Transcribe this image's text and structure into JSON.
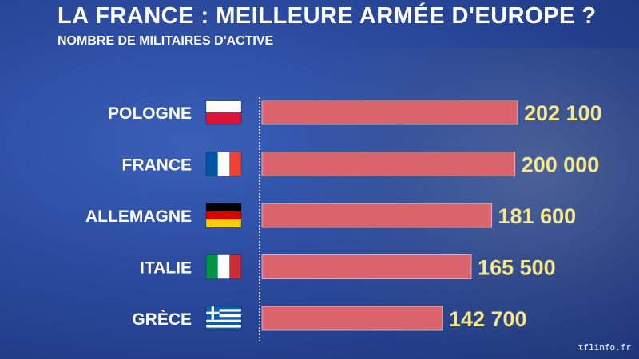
{
  "title": "LA FRANCE : MEILLEURE ARMÉE D'EUROPE ?",
  "subtitle": "NOMBRE DE MILITAIRES D'ACTIVE",
  "credit": "tf1info.fr",
  "colors": {
    "bar": "#d9646b",
    "value": "#f4e88a",
    "label": "#ffffff"
  },
  "chart_data": {
    "type": "bar",
    "orientation": "horizontal",
    "title": "LA FRANCE : MEILLEURE ARMÉE D'EUROPE ?",
    "subtitle": "NOMBRE DE MILITAIRES D'ACTIVE",
    "categories": [
      "POLOGNE",
      "FRANCE",
      "ALLEMAGNE",
      "ITALIE",
      "GRÈCE"
    ],
    "values": [
      202100,
      200000,
      181600,
      165500,
      142700
    ],
    "value_labels": [
      "202 100",
      "200 000",
      "181 600",
      "165 500",
      "142 700"
    ],
    "flags": [
      "poland-flag",
      "france-flag",
      "germany-flag",
      "italy-flag",
      "greece-flag"
    ],
    "xlim": [
      0,
      202100
    ],
    "grid": false,
    "legend": "none"
  }
}
